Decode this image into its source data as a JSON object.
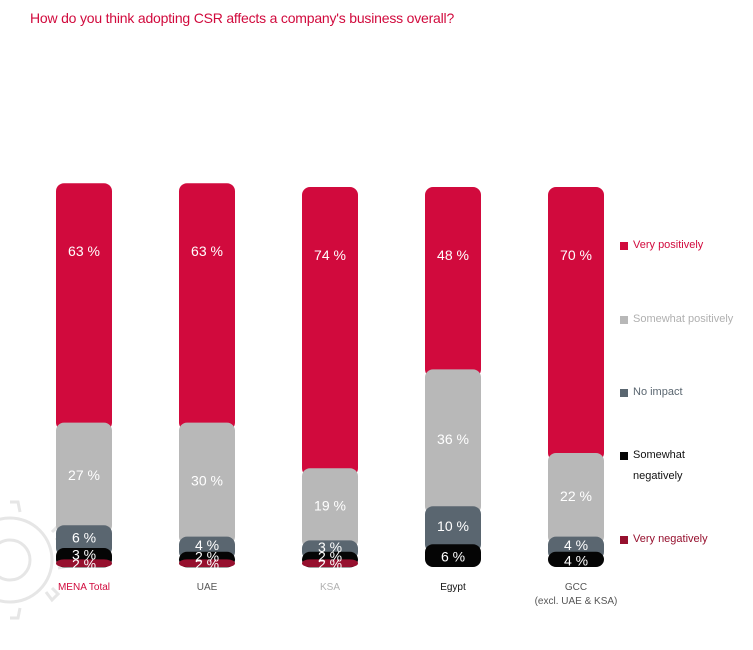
{
  "title": "How do you think adopting CSR affects a company's business overall?",
  "colors": {
    "very_positive": "#d10a3d",
    "somewhat_positive": "#b8b8b8",
    "no_impact": "#5a6670",
    "somewhat_negative": "#050505",
    "very_negative": "#96102e",
    "title": "#d10a3d"
  },
  "chart_data": {
    "type": "bar",
    "stacked": true,
    "title": "How do you think adopting CSR affects a company's business overall?",
    "categories": [
      "MENA Total",
      "UAE",
      "KSA",
      "Egypt",
      "GCC"
    ],
    "category_sublabels": [
      "",
      "",
      "",
      "",
      "(excl. UAE & KSA)"
    ],
    "category_label_colors": [
      "#d10a3d",
      "#555555",
      "#b0b0b0",
      "#111111",
      "#555555"
    ],
    "series": [
      {
        "name": "Very negatively",
        "color": "#96102e",
        "values": [
          2,
          2,
          2,
          0,
          0
        ],
        "labels": [
          "2 %",
          "2 %",
          "2 %",
          "",
          ""
        ]
      },
      {
        "name": "Somewhat negatively",
        "color": "#050505",
        "values": [
          3,
          2,
          2,
          6,
          4
        ],
        "labels": [
          "3 %",
          "2 %",
          "2 %",
          "6 %",
          "4 %"
        ]
      },
      {
        "name": "No impact",
        "color": "#5a6670",
        "values": [
          6,
          4,
          3,
          10,
          4
        ],
        "labels": [
          "6 %",
          "4 %",
          "3 %",
          "10 %",
          "4 %"
        ]
      },
      {
        "name": "Somewhat positively",
        "color": "#b8b8b8",
        "values": [
          27,
          30,
          19,
          36,
          22
        ],
        "labels": [
          "27 %",
          "30 %",
          "19 %",
          "36 %",
          "22 %"
        ]
      },
      {
        "name": "Very positively",
        "color": "#d10a3d",
        "values": [
          63,
          63,
          74,
          48,
          70
        ],
        "labels": [
          "63 %",
          "63 %",
          "74 %",
          "48 %",
          "70 %"
        ]
      }
    ]
  },
  "legend": [
    {
      "label": "Very positively",
      "color": "#d10a3d",
      "text_color": "#d10a3d"
    },
    {
      "label": "Somewhat positively",
      "color": "#b8b8b8",
      "text_color": "#b0b0b0"
    },
    {
      "label": "No impact",
      "color": "#5a6670",
      "text_color": "#5a6670"
    },
    {
      "label": "Somewhat\nnegatively",
      "color": "#050505",
      "text_color": "#111111"
    },
    {
      "label": "Very negatively",
      "color": "#96102e",
      "text_color": "#96102e"
    }
  ]
}
